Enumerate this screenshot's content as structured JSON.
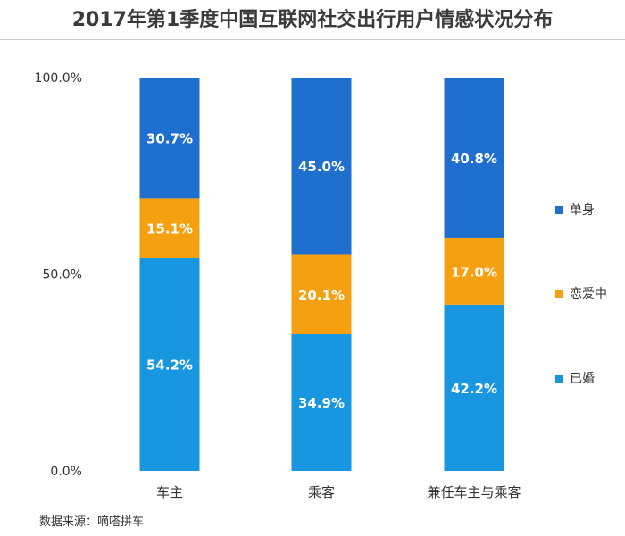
{
  "title": "2017年第1季度中国互联网社交出行用户情感状况分布",
  "source": "数据来源：嘀嗒拼车",
  "colors": {
    "single": "#1f6fcf",
    "dating": "#f5a011",
    "married": "#1996e0"
  },
  "chart_data": {
    "type": "bar",
    "stacked": true,
    "percent": true,
    "categories": [
      "车主",
      "乘客",
      "兼任车主与乘客"
    ],
    "series": [
      {
        "name": "已婚",
        "values": [
          54.2,
          34.9,
          42.2
        ],
        "color": "#1996e0"
      },
      {
        "name": "恋爱中",
        "values": [
          15.1,
          20.1,
          17.0
        ],
        "color": "#f5a011"
      },
      {
        "name": "单身",
        "values": [
          30.7,
          45.0,
          40.8
        ],
        "color": "#1f6fcf"
      }
    ],
    "yticks": [
      "0.0%",
      "50.0%",
      "100.0%"
    ],
    "ylim": [
      0,
      100
    ],
    "legend": [
      "单身",
      "恋爱中",
      "已婚"
    ],
    "legend_position": "right",
    "grid": false
  }
}
